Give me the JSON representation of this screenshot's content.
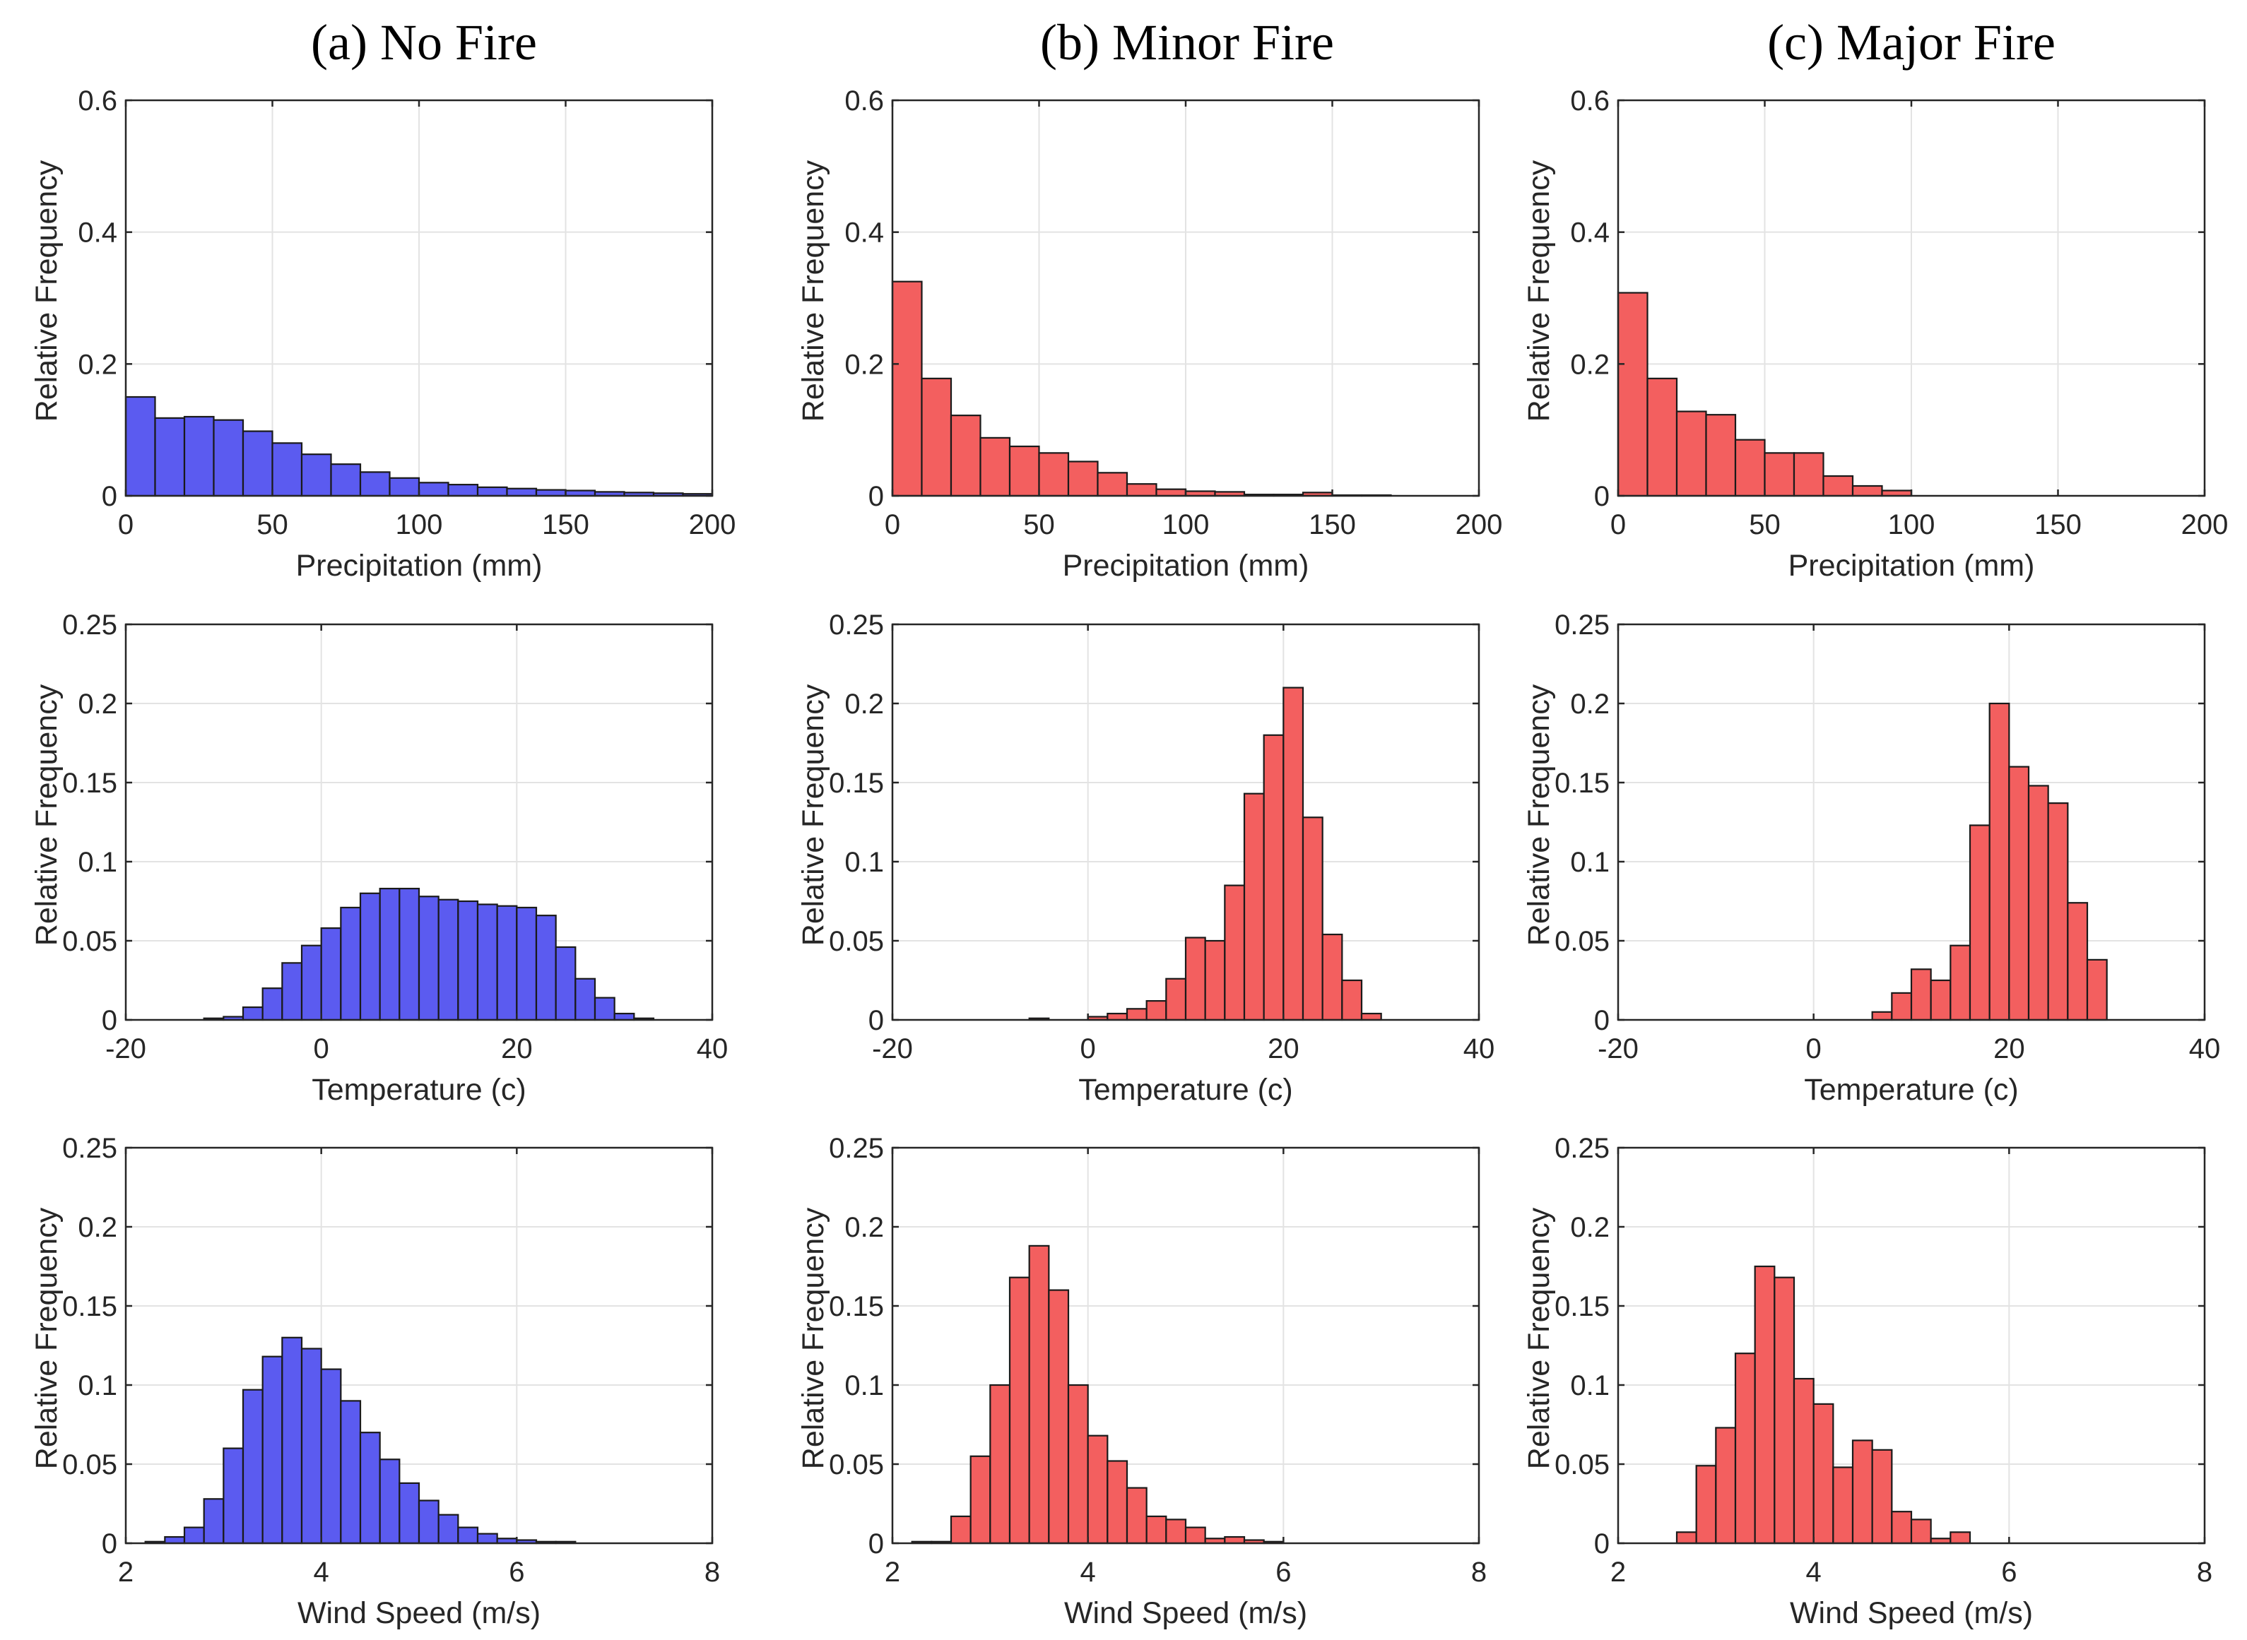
{
  "colors": {
    "no_fire": "#5b5bf0",
    "fire": "#f35f5f"
  },
  "columns": [
    "(a) No Fire",
    "(b) Minor Fire",
    "(c) Major Fire"
  ],
  "chart_data": [
    {
      "type": "bar",
      "column": "(a) No Fire",
      "color_key": "no_fire",
      "xlabel": "Precipitation (mm)",
      "ylabel": "Relative Frequency",
      "xlim": [
        0,
        200
      ],
      "ylim": [
        0,
        0.6
      ],
      "xticks": [
        0,
        50,
        100,
        150,
        200
      ],
      "yticks": [
        0,
        0.2,
        0.4,
        0.6
      ],
      "ytick_labels": [
        "0",
        "0.2",
        "0.4",
        "0.6"
      ],
      "bin_start": 0,
      "bin_width": 10,
      "values": [
        0.15,
        0.118,
        0.12,
        0.115,
        0.098,
        0.08,
        0.063,
        0.048,
        0.036,
        0.027,
        0.02,
        0.017,
        0.013,
        0.011,
        0.009,
        0.008,
        0.006,
        0.005,
        0.004,
        0.003
      ]
    },
    {
      "type": "bar",
      "column": "(b) Minor Fire",
      "color_key": "fire",
      "xlabel": "Precipitation (mm)",
      "ylabel": "Relative Frequency",
      "xlim": [
        0,
        200
      ],
      "ylim": [
        0,
        0.6
      ],
      "xticks": [
        0,
        50,
        100,
        150,
        200
      ],
      "yticks": [
        0,
        0.2,
        0.4,
        0.6
      ],
      "ytick_labels": [
        "0",
        "0.2",
        "0.4",
        "0.6"
      ],
      "bin_start": 0,
      "bin_width": 10,
      "values": [
        0.325,
        0.178,
        0.122,
        0.088,
        0.075,
        0.065,
        0.052,
        0.035,
        0.018,
        0.01,
        0.007,
        0.006,
        0.002,
        0.002,
        0.005,
        0.001,
        0.001,
        0.0,
        0.0,
        0.0
      ]
    },
    {
      "type": "bar",
      "column": "(c) Major Fire",
      "color_key": "fire",
      "xlabel": "Precipitation (mm)",
      "ylabel": "Relative Frequency",
      "xlim": [
        0,
        200
      ],
      "ylim": [
        0,
        0.6
      ],
      "xticks": [
        0,
        50,
        100,
        150,
        200
      ],
      "yticks": [
        0,
        0.2,
        0.4,
        0.6
      ],
      "ytick_labels": [
        "0",
        "0.2",
        "0.4",
        "0.6"
      ],
      "bin_start": 0,
      "bin_width": 10,
      "values": [
        0.308,
        0.178,
        0.128,
        0.123,
        0.085,
        0.065,
        0.065,
        0.03,
        0.015,
        0.008
      ]
    },
    {
      "type": "bar",
      "column": "(a) No Fire",
      "color_key": "no_fire",
      "xlabel": "Temperature (c)",
      "ylabel": "Relative Frequency",
      "xlim": [
        -20,
        40
      ],
      "ylim": [
        0,
        0.25
      ],
      "xticks": [
        -20,
        0,
        20,
        40
      ],
      "yticks": [
        0,
        0.05,
        0.1,
        0.15,
        0.2,
        0.25
      ],
      "ytick_labels": [
        "0",
        "0.05",
        "0.1",
        "0.15",
        "0.2",
        "0.25"
      ],
      "bin_start": -12,
      "bin_width": 2,
      "values": [
        0.001,
        0.002,
        0.008,
        0.02,
        0.036,
        0.047,
        0.058,
        0.071,
        0.08,
        0.083,
        0.083,
        0.078,
        0.076,
        0.075,
        0.073,
        0.072,
        0.071,
        0.066,
        0.046,
        0.026,
        0.014,
        0.004,
        0.001
      ]
    },
    {
      "type": "bar",
      "column": "(b) Minor Fire",
      "color_key": "fire",
      "xlabel": "Temperature (c)",
      "ylabel": "Relative Frequency",
      "xlim": [
        -20,
        40
      ],
      "ylim": [
        0,
        0.25
      ],
      "xticks": [
        -20,
        0,
        20,
        40
      ],
      "yticks": [
        0,
        0.05,
        0.1,
        0.15,
        0.2,
        0.25
      ],
      "ytick_labels": [
        "0",
        "0.05",
        "0.1",
        "0.15",
        "0.2",
        "0.25"
      ],
      "bin_start": -8,
      "bin_width": 2,
      "values": [
        0.0,
        0.001,
        0.0,
        0.0,
        0.002,
        0.004,
        0.007,
        0.012,
        0.026,
        0.052,
        0.05,
        0.085,
        0.143,
        0.18,
        0.21,
        0.128,
        0.054,
        0.025,
        0.004
      ]
    },
    {
      "type": "bar",
      "column": "(c) Major Fire",
      "color_key": "fire",
      "xlabel": "Temperature (c)",
      "ylabel": "Relative Frequency",
      "xlim": [
        -20,
        40
      ],
      "ylim": [
        0,
        0.25
      ],
      "xticks": [
        -20,
        0,
        20,
        40
      ],
      "yticks": [
        0,
        0.05,
        0.1,
        0.15,
        0.2,
        0.25
      ],
      "ytick_labels": [
        "0",
        "0.05",
        "0.1",
        "0.15",
        "0.2",
        "0.25"
      ],
      "bin_start": 6,
      "bin_width": 2,
      "values": [
        0.005,
        0.017,
        0.032,
        0.025,
        0.047,
        0.123,
        0.2,
        0.16,
        0.148,
        0.137,
        0.074,
        0.038
      ]
    },
    {
      "type": "bar",
      "column": "(a) No Fire",
      "color_key": "no_fire",
      "xlabel": "Wind Speed (m/s)",
      "ylabel": "Relative Frequency",
      "xlim": [
        2,
        8
      ],
      "ylim": [
        0,
        0.25
      ],
      "xticks": [
        2,
        4,
        6,
        8
      ],
      "yticks": [
        0,
        0.05,
        0.1,
        0.15,
        0.2,
        0.25
      ],
      "ytick_labels": [
        "0",
        "0.05",
        "0.1",
        "0.15",
        "0.2",
        "0.25"
      ],
      "bin_start": 2.2,
      "bin_width": 0.2,
      "values": [
        0.001,
        0.004,
        0.01,
        0.028,
        0.06,
        0.097,
        0.118,
        0.13,
        0.123,
        0.11,
        0.09,
        0.07,
        0.053,
        0.038,
        0.027,
        0.018,
        0.01,
        0.006,
        0.003,
        0.002,
        0.001,
        0.001
      ]
    },
    {
      "type": "bar",
      "column": "(b) Minor Fire",
      "color_key": "fire",
      "xlabel": "Wind Speed (m/s)",
      "ylabel": "Relative Frequency",
      "xlim": [
        2,
        8
      ],
      "ylim": [
        0,
        0.25
      ],
      "xticks": [
        2,
        4,
        6,
        8
      ],
      "yticks": [
        0,
        0.05,
        0.1,
        0.15,
        0.2,
        0.25
      ],
      "ytick_labels": [
        "0",
        "0.05",
        "0.1",
        "0.15",
        "0.2",
        "0.25"
      ],
      "bin_start": 2.2,
      "bin_width": 0.2,
      "values": [
        0.001,
        0.001,
        0.017,
        0.055,
        0.1,
        0.168,
        0.188,
        0.16,
        0.1,
        0.068,
        0.052,
        0.035,
        0.017,
        0.015,
        0.01,
        0.003,
        0.004,
        0.002,
        0.001
      ]
    },
    {
      "type": "bar",
      "column": "(c) Major Fire",
      "color_key": "fire",
      "xlabel": "Wind Speed (m/s)",
      "ylabel": "Relative Frequency",
      "xlim": [
        2,
        8
      ],
      "ylim": [
        0,
        0.25
      ],
      "xticks": [
        2,
        4,
        6,
        8
      ],
      "yticks": [
        0,
        0.05,
        0.1,
        0.15,
        0.2,
        0.25
      ],
      "ytick_labels": [
        "0",
        "0.05",
        "0.1",
        "0.15",
        "0.2",
        "0.25"
      ],
      "bin_start": 2.6,
      "bin_width": 0.2,
      "values": [
        0.007,
        0.049,
        0.073,
        0.12,
        0.175,
        0.168,
        0.104,
        0.088,
        0.048,
        0.065,
        0.059,
        0.02,
        0.015,
        0.003,
        0.007
      ]
    }
  ]
}
